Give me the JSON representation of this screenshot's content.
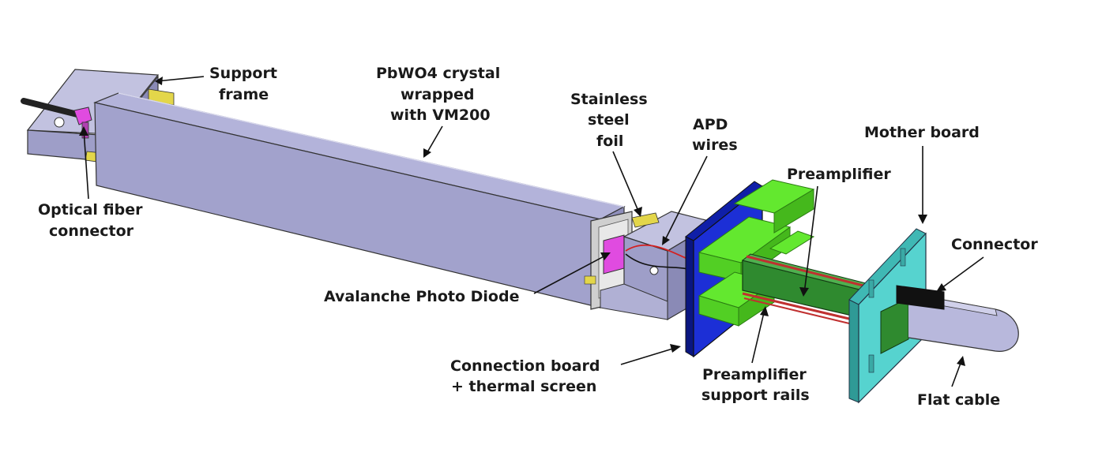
{
  "labels": {
    "support_frame": [
      "Support",
      "frame"
    ],
    "crystal": [
      "PbWO4 crystal",
      "wrapped",
      "with VM200"
    ],
    "steel_foil": [
      "Stainless",
      "steel",
      "foil"
    ],
    "apd_wires": [
      "APD",
      "wires"
    ],
    "mother_board": "Mother board",
    "preamplifier": "Preamplifier",
    "connector": "Connector",
    "optical_fiber": [
      "Optical fiber",
      "connector"
    ],
    "apd": "Avalanche Photo Diode",
    "connection_board": [
      "Connection board",
      "+ thermal screen"
    ],
    "rails": [
      "Preamplifier",
      "support rails"
    ],
    "flat_cable": "Flat cable"
  },
  "colors": {
    "crystal_top": "#b3b3da",
    "crystal_front": "#a2a2cc",
    "crystal_side": "#8f8fbb",
    "frame": "#b0b0d4",
    "blue_board": "#1c2fd6",
    "green": "#63e82f",
    "cyan_board": "#56d3cf",
    "magenta": "#e04be0",
    "yellow": "#e3d64a"
  }
}
